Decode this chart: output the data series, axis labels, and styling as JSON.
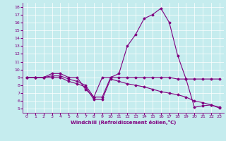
{
  "xlabel": "Windchill (Refroidissement éolien,°C)",
  "bg_color": "#c5ecee",
  "line_color": "#800080",
  "xlim": [
    -0.5,
    23.5
  ],
  "ylim": [
    4.5,
    18.5
  ],
  "xticks": [
    0,
    1,
    2,
    3,
    4,
    5,
    6,
    7,
    8,
    9,
    10,
    11,
    12,
    13,
    14,
    15,
    16,
    17,
    18,
    19,
    20,
    21,
    22,
    23
  ],
  "yticks": [
    5,
    6,
    7,
    8,
    9,
    10,
    11,
    12,
    13,
    14,
    15,
    16,
    17,
    18
  ],
  "series1_x": [
    0,
    1,
    2,
    3,
    4,
    5,
    6,
    7,
    8,
    9,
    10,
    11,
    12,
    13,
    14,
    15,
    16,
    17,
    18,
    19,
    20,
    21,
    22,
    23
  ],
  "series1_y": [
    9.0,
    9.0,
    9.0,
    9.5,
    9.5,
    9.0,
    9.0,
    7.5,
    6.5,
    9.0,
    9.0,
    9.0,
    9.0,
    9.0,
    9.0,
    9.0,
    9.0,
    9.0,
    8.8,
    8.8,
    8.8,
    8.8,
    8.8,
    8.8
  ],
  "series2_x": [
    0,
    1,
    2,
    3,
    4,
    5,
    6,
    7,
    8,
    9,
    10,
    11,
    12,
    13,
    14,
    15,
    16,
    17,
    18,
    19,
    20,
    21,
    22,
    23
  ],
  "series2_y": [
    9.0,
    9.0,
    9.0,
    9.2,
    9.2,
    8.8,
    8.5,
    8.0,
    6.5,
    6.5,
    9.0,
    9.5,
    13.0,
    14.5,
    16.5,
    17.0,
    17.8,
    16.0,
    11.8,
    8.8,
    5.2,
    5.4,
    5.5,
    5.1
  ],
  "series3_x": [
    0,
    1,
    2,
    3,
    4,
    5,
    6,
    7,
    8,
    9,
    10,
    11,
    12,
    13,
    14,
    15,
    16,
    17,
    18,
    19,
    20,
    21,
    22,
    23
  ],
  "series3_y": [
    9.0,
    9.0,
    9.0,
    9.0,
    9.0,
    8.5,
    8.2,
    7.8,
    6.2,
    6.2,
    8.8,
    8.5,
    8.2,
    8.0,
    7.8,
    7.5,
    7.2,
    7.0,
    6.8,
    6.5,
    6.0,
    5.8,
    5.5,
    5.2
  ],
  "grid_color": "#ffffff",
  "marker": "D",
  "markersize": 1.5,
  "linewidth": 0.8,
  "tick_fontsize": 4.5,
  "xlabel_fontsize": 5.0
}
